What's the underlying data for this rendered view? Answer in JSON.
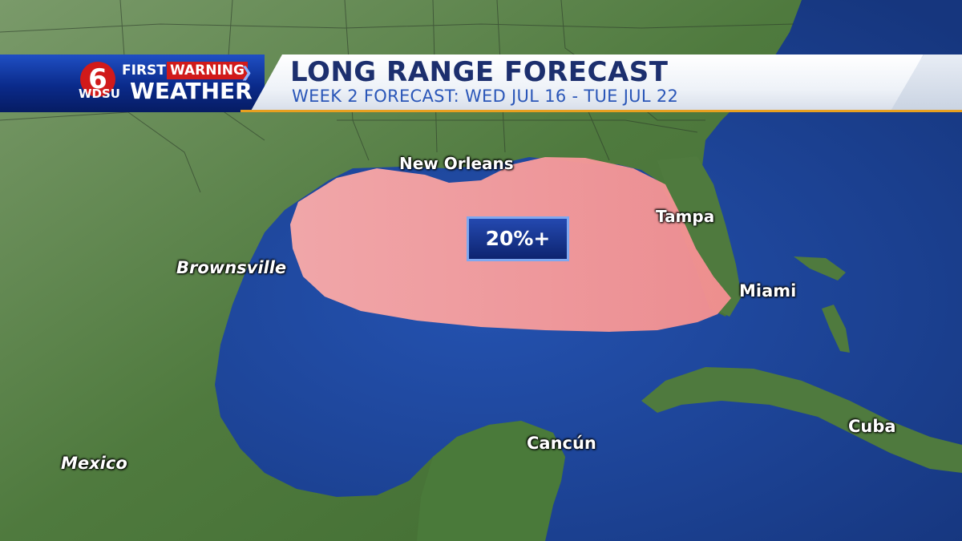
{
  "header": {
    "title": "LONG RANGE FORECAST",
    "subtitle": "WEEK 2 FORECAST: WED JUL 16 - TUE JUL 22"
  },
  "logo": {
    "channel": "6",
    "first": "FIRST",
    "warning": "WARNING",
    "station": "WDSU",
    "weather": "WEATHER"
  },
  "forecast_area": {
    "label": "20%+",
    "probability_min": 20
  },
  "cities": [
    {
      "name": "New Orleans"
    },
    {
      "name": "Tampa"
    },
    {
      "name": "Brownsville"
    },
    {
      "name": "Miami"
    },
    {
      "name": "Cancún"
    },
    {
      "name": "Cuba"
    },
    {
      "name": "Mexico"
    }
  ],
  "colors": {
    "ocean": "#1f4aa3",
    "land": "#4f7a3e",
    "area": "#f59a9a",
    "banner_blue": "#0a2a8a",
    "title_text": "#1c2f6e",
    "subtitle_text": "#2a56b8",
    "logo_red": "#d11a1a"
  }
}
